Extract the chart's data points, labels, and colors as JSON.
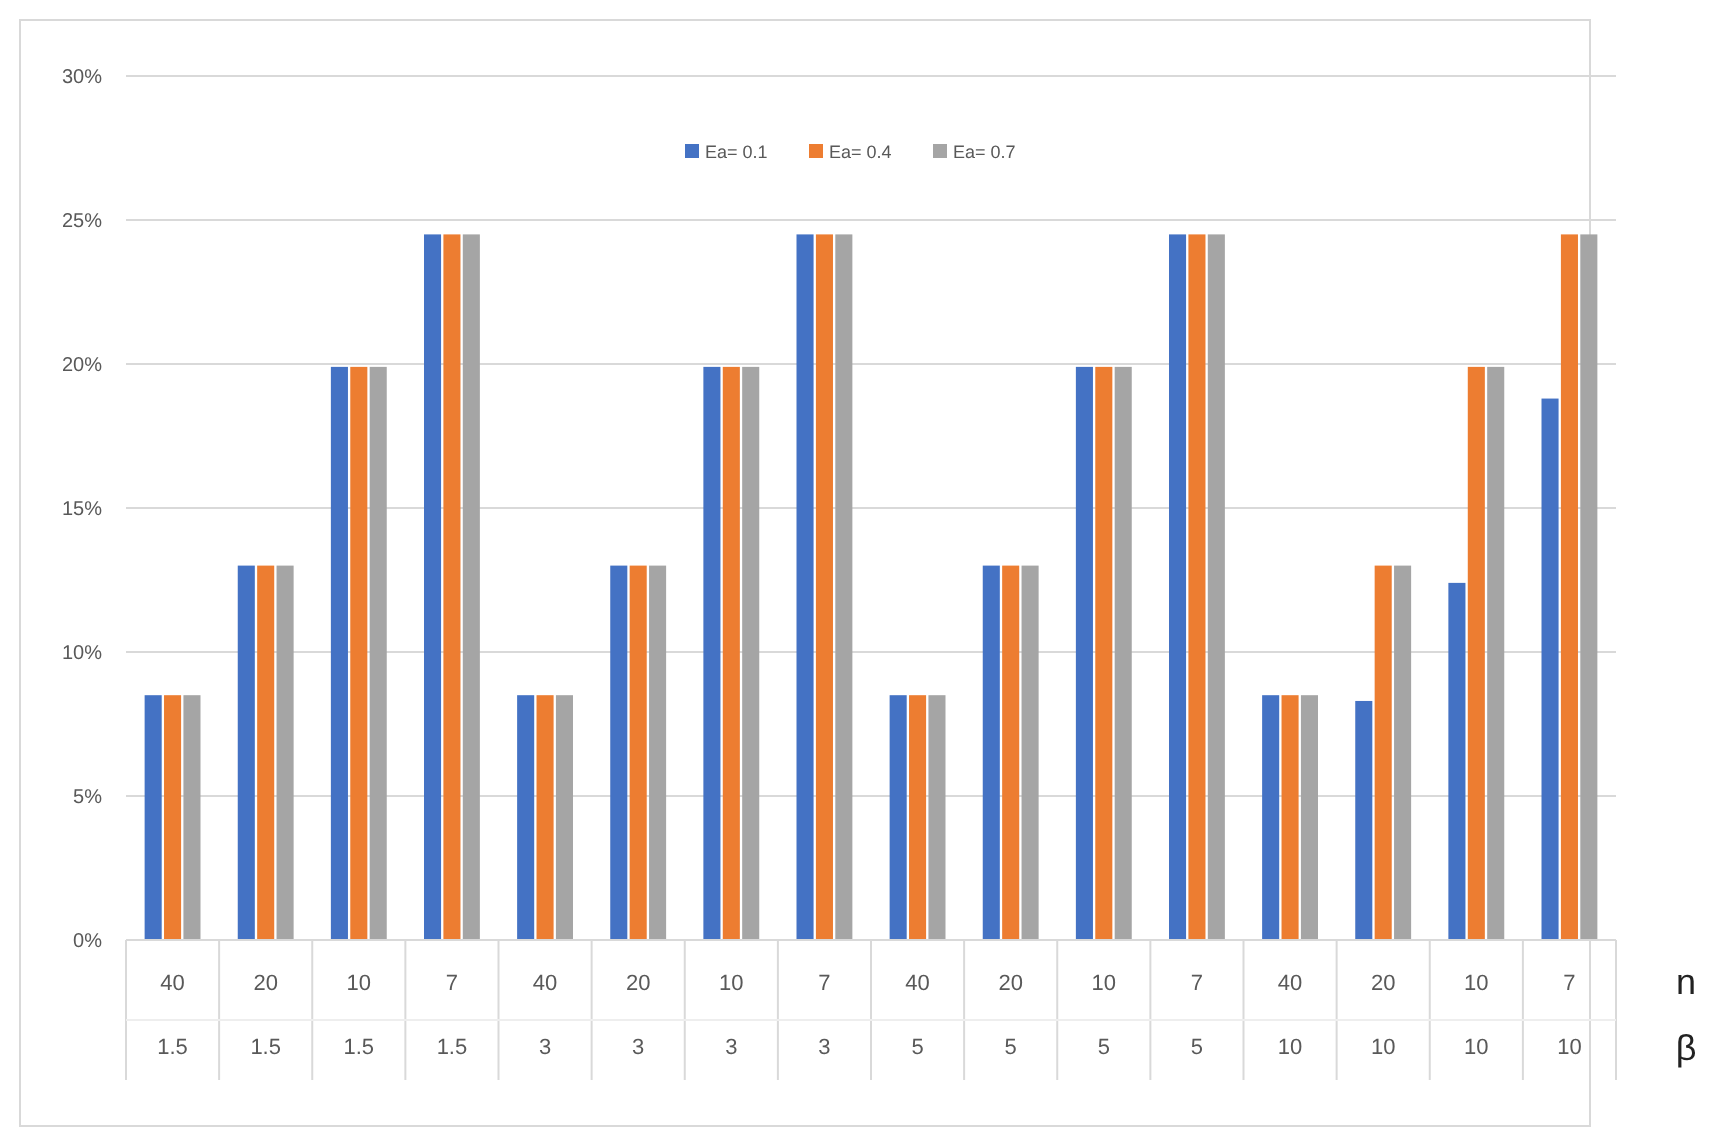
{
  "chart_data": {
    "type": "bar",
    "categories": [
      "40\n1.5",
      "20\n1.5",
      "10\n1.5",
      "7\n1.5",
      "40\n3",
      "20\n3",
      "10\n3",
      "7\n3",
      "40\n5",
      "20\n5",
      "10\n5",
      "7\n5",
      "40\n10",
      "20\n10",
      "10\n10",
      "7\n10"
    ],
    "series": [
      {
        "name": "Ea= 0.1",
        "color": "#4472c4",
        "values": [
          8.5,
          13.0,
          19.9,
          24.5,
          8.5,
          13.0,
          19.9,
          24.5,
          8.5,
          13.0,
          19.9,
          24.5,
          8.5,
          8.3,
          12.4,
          18.8
        ]
      },
      {
        "name": "Ea= 0.4",
        "color": "#ed7d31",
        "values": [
          8.5,
          13.0,
          19.9,
          24.5,
          8.5,
          13.0,
          19.9,
          24.5,
          8.5,
          13.0,
          19.9,
          24.5,
          8.5,
          13.0,
          19.9,
          24.5
        ]
      },
      {
        "name": "Ea= 0.7",
        "color": "#a5a5a5",
        "values": [
          8.5,
          13.0,
          19.9,
          24.5,
          8.5,
          13.0,
          19.9,
          24.5,
          8.5,
          13.0,
          19.9,
          24.5,
          8.5,
          13.0,
          19.9,
          24.5
        ]
      }
    ],
    "ylim": [
      0,
      30
    ],
    "yticks": [
      {
        "value": 0,
        "label": "0%"
      },
      {
        "value": 5,
        "label": "5%"
      },
      {
        "value": 10,
        "label": "10%"
      },
      {
        "value": 15,
        "label": "15%"
      },
      {
        "value": 20,
        "label": "20%"
      },
      {
        "value": 25,
        "label": "25%"
      },
      {
        "value": 30,
        "label": "30%"
      }
    ],
    "grid": "y",
    "legend": "top",
    "annotations": [
      "n",
      "β"
    ]
  }
}
